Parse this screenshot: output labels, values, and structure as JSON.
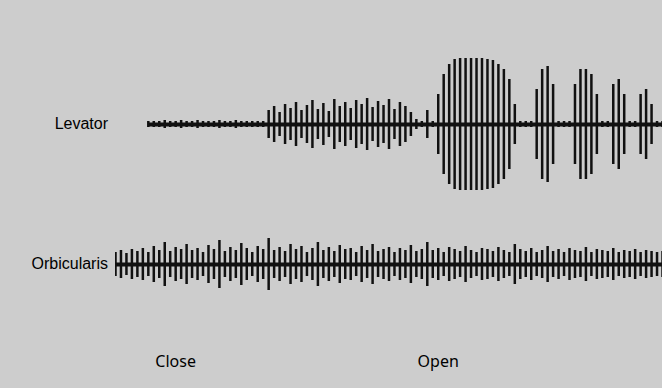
{
  "chart_data": {
    "type": "trace",
    "tick_labels": false,
    "xlim": [
      0,
      100
    ],
    "series": [
      {
        "name": "Levator",
        "color": "#111111",
        "ylim": [
          -70,
          70
        ],
        "x": [
          6,
          7,
          8,
          9,
          10,
          11,
          12,
          13,
          14,
          15,
          16,
          17,
          18,
          19,
          20,
          21,
          22,
          23,
          24,
          25,
          26,
          27,
          28,
          29,
          30,
          31,
          32,
          33,
          34,
          35,
          36,
          37,
          38,
          39,
          40,
          41,
          42,
          43,
          44,
          45,
          46,
          47,
          48,
          49,
          50,
          51,
          52,
          53,
          54,
          55,
          56,
          57,
          58,
          59,
          60,
          61,
          62,
          63,
          64,
          65,
          66,
          67,
          68,
          69,
          70,
          71,
          72,
          73,
          74,
          75,
          76,
          77,
          78,
          79,
          80,
          81,
          82,
          83,
          84,
          85,
          86,
          87,
          88,
          89,
          90,
          91,
          92,
          93,
          94,
          95,
          96,
          97,
          98,
          99,
          100
        ],
        "values": [
          3,
          3,
          3,
          4,
          3,
          3,
          4,
          3,
          3,
          4,
          3,
          3,
          3,
          4,
          3,
          3,
          4,
          3,
          3,
          3,
          3,
          3,
          14,
          18,
          12,
          20,
          16,
          22,
          14,
          19,
          24,
          15,
          21,
          13,
          25,
          18,
          22,
          16,
          24,
          20,
          26,
          17,
          23,
          19,
          25,
          15,
          22,
          18,
          12,
          5,
          3,
          14,
          3,
          30,
          50,
          60,
          65,
          66,
          66,
          66,
          66,
          66,
          65,
          64,
          60,
          55,
          45,
          20,
          3,
          3,
          3,
          35,
          55,
          58,
          40,
          3,
          3,
          3,
          40,
          55,
          55,
          50,
          30,
          3,
          3,
          40,
          45,
          30,
          3,
          3,
          30,
          35,
          20,
          3,
          3
        ]
      },
      {
        "name": "Orbicularis",
        "color": "#111111",
        "ylim": [
          -35,
          35
        ],
        "x": [
          0,
          1,
          2,
          3,
          4,
          5,
          6,
          7,
          8,
          9,
          10,
          11,
          12,
          13,
          14,
          15,
          16,
          17,
          18,
          19,
          20,
          21,
          22,
          23,
          24,
          25,
          26,
          27,
          28,
          29,
          30,
          31,
          32,
          33,
          34,
          35,
          36,
          37,
          38,
          39,
          40,
          41,
          42,
          43,
          44,
          45,
          46,
          47,
          48,
          49,
          50,
          51,
          52,
          53,
          54,
          55,
          56,
          57,
          58,
          59,
          60,
          61,
          62,
          63,
          64,
          65,
          66,
          67,
          68,
          69,
          70,
          71,
          72,
          73,
          74,
          75,
          76,
          77,
          78,
          79,
          80,
          81,
          82,
          83,
          84,
          85,
          86,
          87,
          88,
          89,
          90,
          91,
          92,
          93,
          94,
          95,
          96,
          97,
          98,
          99,
          100
        ],
        "values": [
          12,
          14,
          11,
          15,
          13,
          16,
          12,
          18,
          14,
          22,
          13,
          17,
          15,
          20,
          14,
          16,
          12,
          19,
          15,
          24,
          13,
          17,
          14,
          21,
          16,
          12,
          18,
          15,
          26,
          14,
          17,
          13,
          20,
          15,
          18,
          12,
          16,
          22,
          14,
          17,
          13,
          19,
          15,
          16,
          12,
          18,
          14,
          20,
          13,
          15,
          17,
          12,
          16,
          14,
          19,
          13,
          15,
          22,
          14,
          16,
          12,
          17,
          15,
          13,
          18,
          14,
          12,
          16,
          15,
          13,
          17,
          14,
          12,
          20,
          15,
          13,
          16,
          12,
          14,
          18,
          13,
          15,
          12,
          16,
          14,
          13,
          17,
          12,
          15,
          14,
          13,
          16,
          12,
          14,
          13,
          15,
          12,
          14,
          13,
          12,
          13
        ]
      }
    ],
    "annotations": [
      {
        "text": "Close",
        "x": 11
      },
      {
        "text": "Open",
        "x": 59
      }
    ]
  }
}
